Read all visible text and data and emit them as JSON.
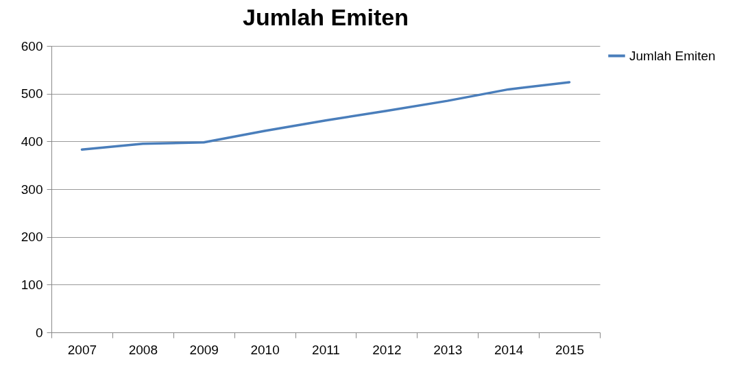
{
  "chart_data": {
    "type": "line",
    "title": "Jumlah Emiten",
    "categories": [
      "2007",
      "2008",
      "2009",
      "2010",
      "2011",
      "2012",
      "2013",
      "2014",
      "2015"
    ],
    "series": [
      {
        "name": "Jumlah Emiten",
        "color": "#4a7ebb",
        "values": [
          383,
          395,
          398,
          422,
          444,
          464,
          485,
          509,
          524
        ]
      }
    ],
    "ylim": [
      0,
      600
    ],
    "yticks": [
      0,
      100,
      200,
      300,
      400,
      500,
      600
    ],
    "grid": "y",
    "legend": "right",
    "marker": "none"
  }
}
